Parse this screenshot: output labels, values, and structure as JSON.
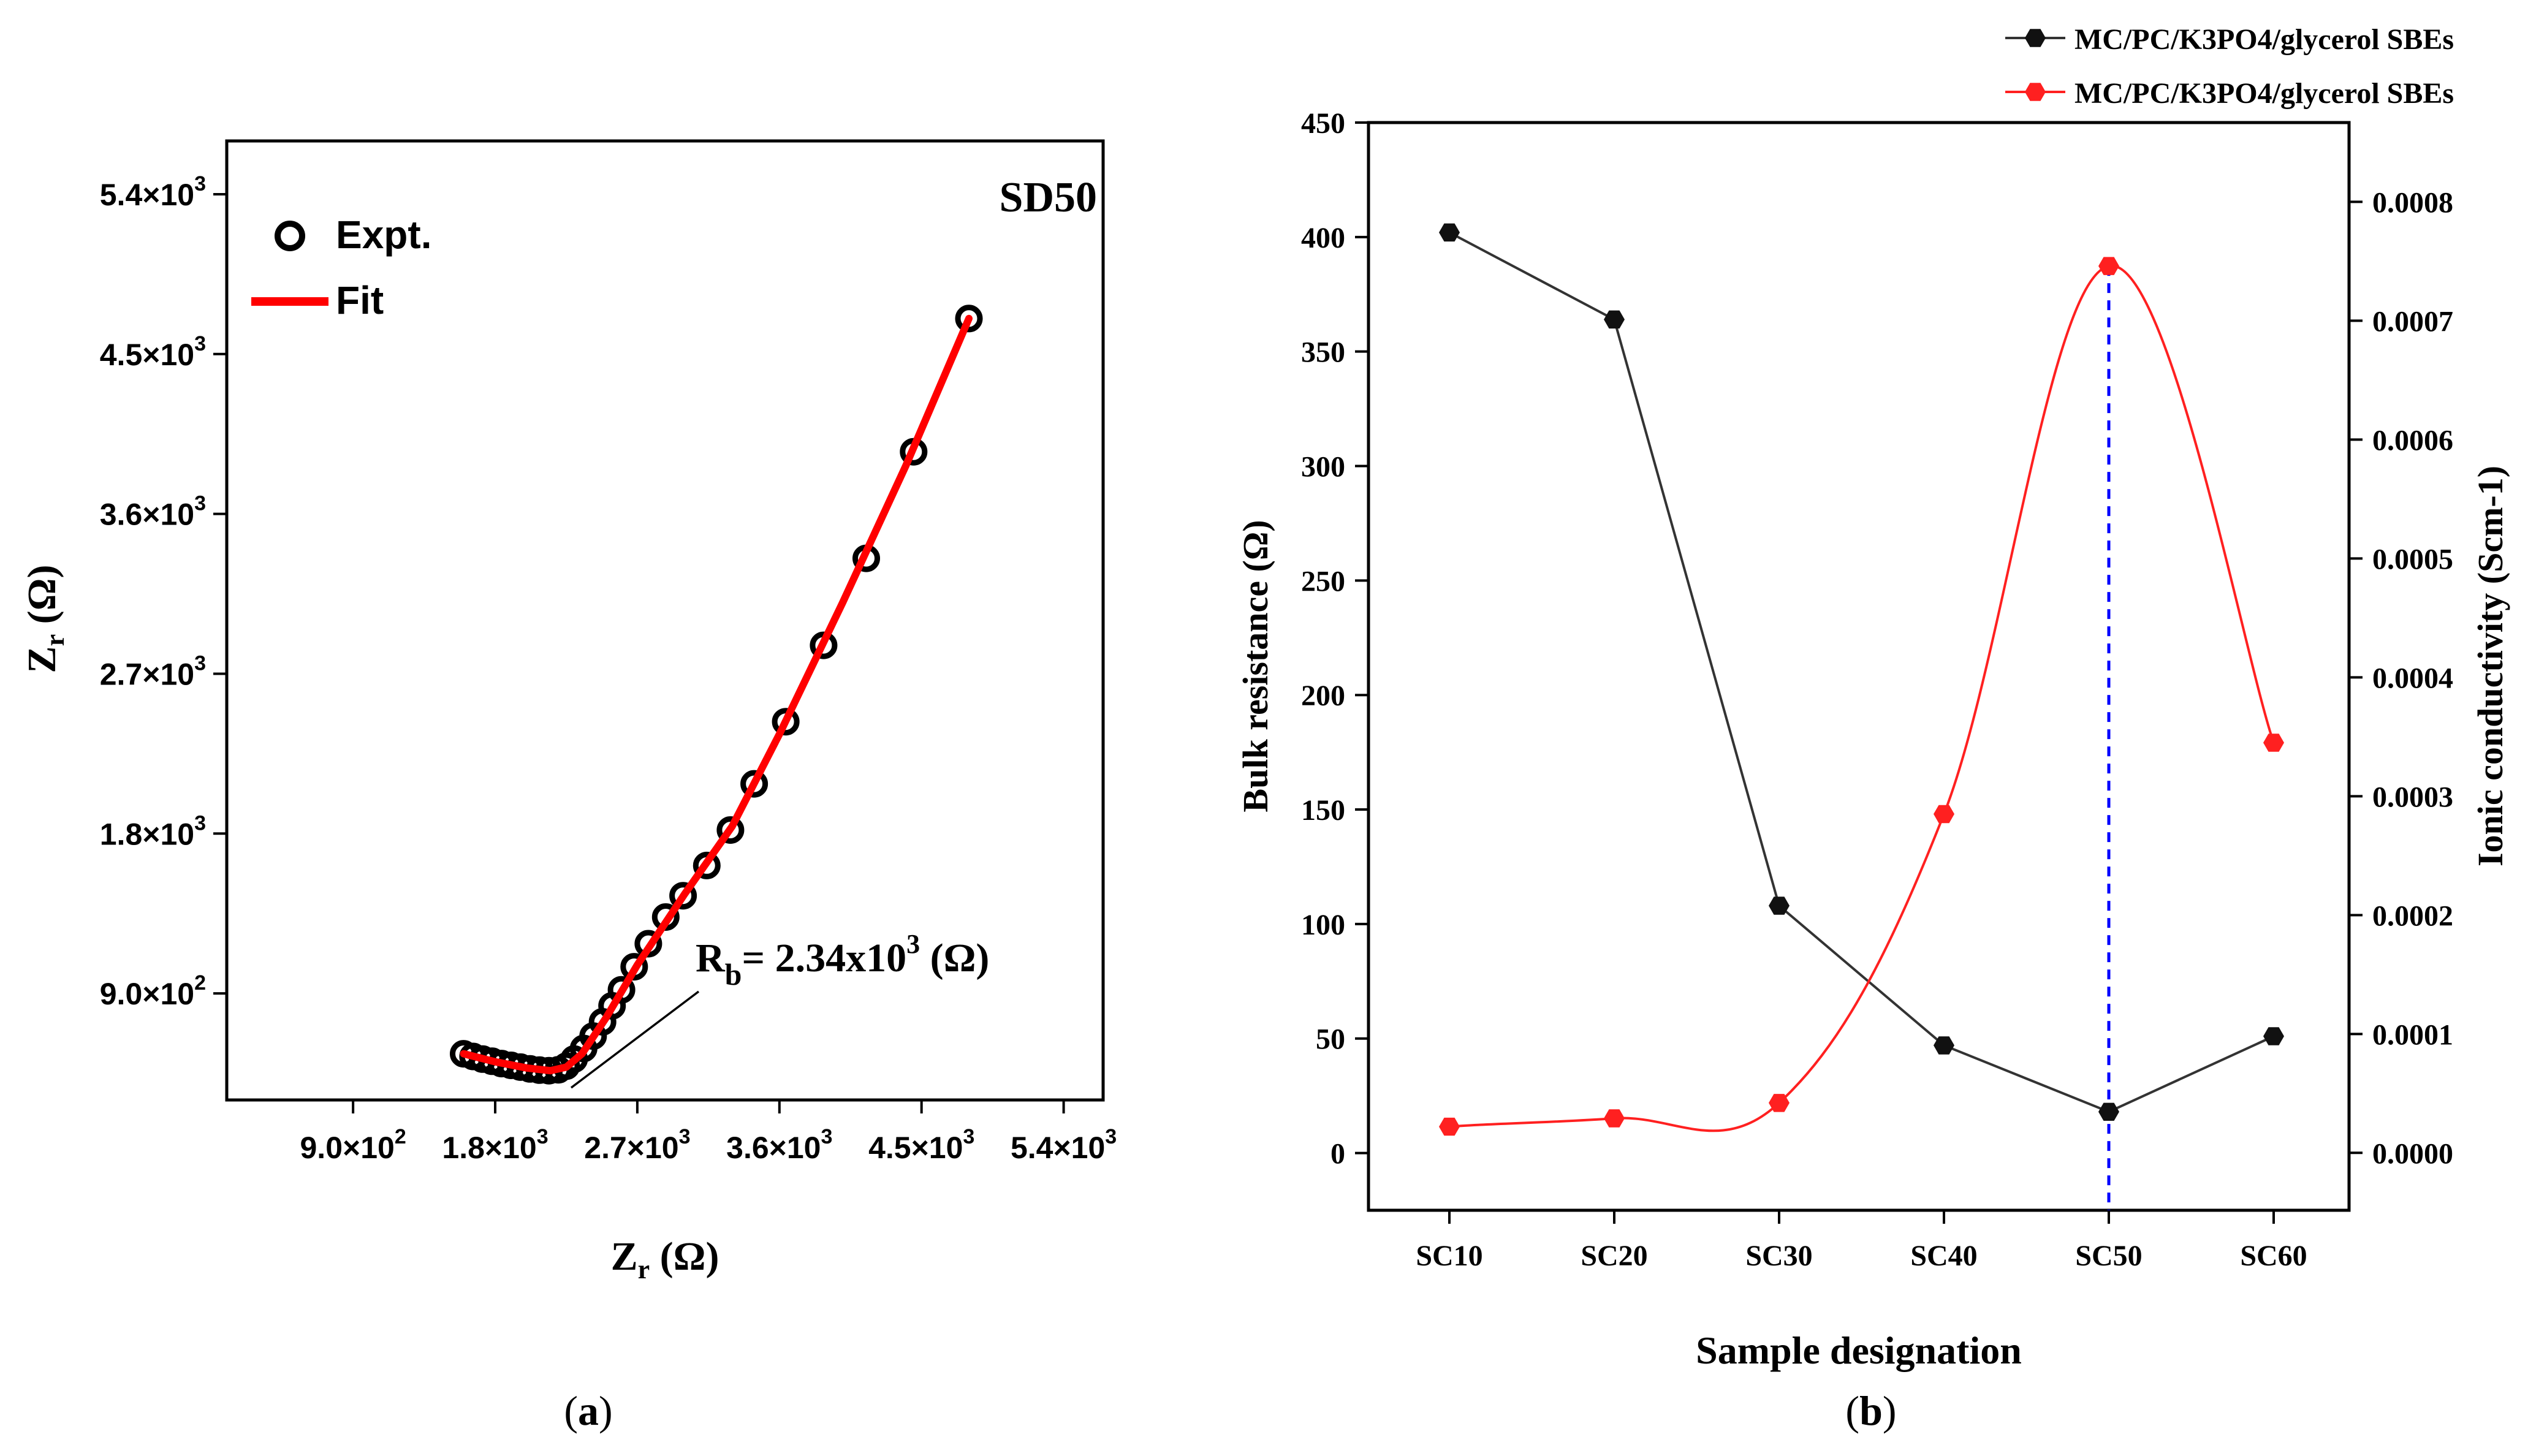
{
  "colors": {
    "expt_marker": "#000000",
    "fit_line": "#ff0000",
    "resistance_series": "#333333",
    "conductivity_series": "#ff2020",
    "guide_line": "#0000ff"
  },
  "chart_data": [
    {
      "type": "scatter",
      "panel_label": "(a)",
      "panel_letter": "a",
      "title": "SD50",
      "xlabel": "Z_r (Ω)",
      "xlabel_main": "Z",
      "xlabel_sub": "r",
      "xlabel_unit": " (Ω)",
      "ylabel": "Z_r (Ω)",
      "ylabel_main": "Z",
      "ylabel_sub": "r",
      "ylabel_unit": " (Ω)",
      "xlim": [
        100,
        5650
      ],
      "ylim": [
        300,
        5700
      ],
      "x_ticks": [
        {
          "value": 900,
          "label": "9.0×10",
          "exp": "2"
        },
        {
          "value": 1800,
          "label": "1.8×10",
          "exp": "3"
        },
        {
          "value": 2700,
          "label": "2.7×10",
          "exp": "3"
        },
        {
          "value": 3600,
          "label": "3.6×10",
          "exp": "3"
        },
        {
          "value": 4500,
          "label": "4.5×10",
          "exp": "3"
        },
        {
          "value": 5400,
          "label": "5.4×10",
          "exp": "3"
        }
      ],
      "y_ticks": [
        {
          "value": 900,
          "label": "9.0×10",
          "exp": "2"
        },
        {
          "value": 1800,
          "label": "1.8×10",
          "exp": "3"
        },
        {
          "value": 2700,
          "label": "2.7×10",
          "exp": "3"
        },
        {
          "value": 3600,
          "label": "3.6×10",
          "exp": "3"
        },
        {
          "value": 4500,
          "label": "4.5×10",
          "exp": "3"
        },
        {
          "value": 5400,
          "label": "5.4×10",
          "exp": "3"
        }
      ],
      "legend": [
        {
          "name": "Expt.",
          "marker": "open-circle"
        },
        {
          "name": "Fit",
          "marker": "line"
        }
      ],
      "legend_position": "top-left",
      "annotation": {
        "prefix": "R",
        "sub": "b",
        "value": "= 2.34x10",
        "exp": "3",
        "unit": " (Ω)",
        "at": [
          2240,
          490
        ]
      },
      "series": [
        {
          "name": "Expt.",
          "points": [
            [
              1600,
              560
            ],
            [
              1660,
              545
            ],
            [
              1720,
              530
            ],
            [
              1780,
              518
            ],
            [
              1840,
              505
            ],
            [
              1900,
              495
            ],
            [
              1960,
              485
            ],
            [
              2020,
              475
            ],
            [
              2080,
              468
            ],
            [
              2140,
              465
            ],
            [
              2200,
              470
            ],
            [
              2250,
              490
            ],
            [
              2300,
              530
            ],
            [
              2360,
              590
            ],
            [
              2420,
              660
            ],
            [
              2480,
              740
            ],
            [
              2540,
              830
            ],
            [
              2600,
              920
            ],
            [
              2680,
              1050
            ],
            [
              2770,
              1180
            ],
            [
              2880,
              1330
            ],
            [
              2990,
              1450
            ],
            [
              3140,
              1620
            ],
            [
              3290,
              1820
            ],
            [
              3440,
              2080
            ],
            [
              3640,
              2430
            ],
            [
              3880,
              2860
            ],
            [
              4150,
              3350
            ],
            [
              4450,
              3950
            ],
            [
              4800,
              4700
            ]
          ]
        },
        {
          "name": "Fit",
          "points": [
            [
              1600,
              560
            ],
            [
              1800,
              515
            ],
            [
              2000,
              480
            ],
            [
              2150,
              465
            ],
            [
              2250,
              485
            ],
            [
              2350,
              560
            ],
            [
              2500,
              760
            ],
            [
              2700,
              1060
            ],
            [
              3000,
              1460
            ],
            [
              3300,
              1840
            ],
            [
              3600,
              2360
            ],
            [
              4000,
              3100
            ],
            [
              4400,
              3870
            ],
            [
              4800,
              4700
            ]
          ]
        }
      ]
    },
    {
      "type": "line",
      "panel_label": "(b)",
      "panel_letter": "b",
      "title": "",
      "xlabel": "Sample designation",
      "ylabel": "Bulk resistance (Ω)",
      "y2label": "Ionic conductivity (Scm-1)",
      "categories": [
        "SC10",
        "SC20",
        "SC30",
        "SC40",
        "SC50",
        "SC60"
      ],
      "ylim": [
        -25,
        450
      ],
      "y_ticks": [
        0,
        50,
        100,
        150,
        200,
        250,
        300,
        350,
        400,
        450
      ],
      "y2lim": [
        -4.83e-05,
        0.0008667
      ],
      "y2_ticks": [
        "0.0000",
        "0.0001",
        "0.0002",
        "0.0003",
        "0.0004",
        "0.0005",
        "0.0006",
        "0.0007",
        "0.0008"
      ],
      "legend": [
        {
          "name": "MC/PC/K3PO4/glycerol SBEs",
          "series": "resistance"
        },
        {
          "name": "MC/PC/K3PO4/glycerol SBEs",
          "series": "conductivity"
        }
      ],
      "legend_position": "top-right (outside plot)",
      "series": [
        {
          "name": "MC/PC/K3PO4/glycerol SBEs",
          "axis": "left",
          "values": [
            402,
            364,
            108,
            47,
            18,
            51
          ]
        },
        {
          "name": "MC/PC/K3PO4/glycerol SBEs",
          "axis": "right",
          "values": [
            2.2e-05,
            2.9e-05,
            4.2e-05,
            0.000285,
            0.000746,
            0.000345
          ]
        }
      ],
      "guide_line": {
        "category": "SC50",
        "style": "dashed"
      }
    }
  ]
}
